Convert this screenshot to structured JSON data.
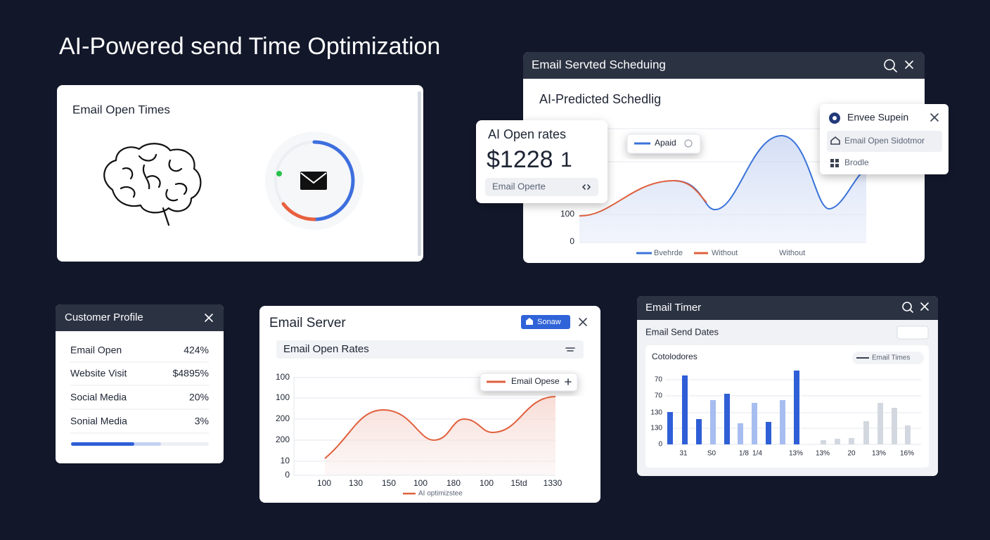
{
  "title": "AI-Powered send Time Optimization",
  "open_times": {
    "title": "Email Open Times"
  },
  "scheduling": {
    "header": "Email Servted Scheduing",
    "subtitle": "AI-Predicted Schedlig",
    "tooltip": "Apaid",
    "y_labels": [
      "100",
      "0"
    ],
    "legend": [
      "Bvehrde",
      "Without",
      "Without"
    ]
  },
  "open_rates_card": {
    "title": "AI Open rates",
    "value": "$1228",
    "suffix": "1",
    "field": "Email Operte"
  },
  "dropdown": {
    "title": "Envee Supein",
    "items": [
      "Email Open Sidotmor",
      "Brodle"
    ]
  },
  "customer_profile": {
    "title": "Customer Profile",
    "rows": [
      [
        "Email Open",
        "424%"
      ],
      [
        "Website Visit",
        "$4895%"
      ],
      [
        "Social Media",
        "20%"
      ],
      [
        "Sonial Media",
        "3%"
      ]
    ]
  },
  "email_server": {
    "title": "Email Server",
    "button": "Sonaw",
    "subheader": "Email Open Rates",
    "y_labels": [
      "100",
      "100",
      "200",
      "200",
      "10",
      "0"
    ],
    "x_labels": [
      "100",
      "130",
      "150",
      "100",
      "180",
      "100",
      "15td",
      "1330"
    ],
    "tooltip": "Email Opese",
    "legend": "AI optimizstee"
  },
  "email_timer": {
    "header": "Email Timer",
    "subtitle": "Email Send Dates",
    "card_title": "Cotolodores",
    "filter": "Email Times",
    "y_labels": [
      "70",
      "70",
      "130",
      "130",
      "0"
    ],
    "x_labels": [
      "31",
      "S0",
      "1/8",
      "1/4",
      "13%",
      "13%",
      "20",
      "13%",
      "16%"
    ]
  }
}
